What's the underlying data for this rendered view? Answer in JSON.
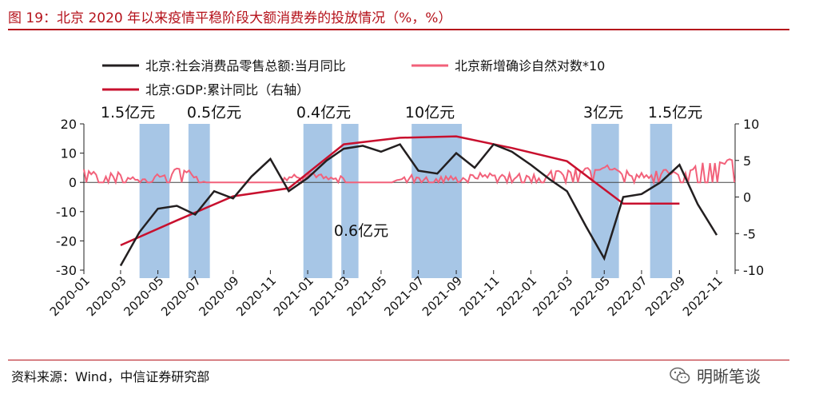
{
  "title": "图 19：北京 2020 年以来疫情平稳阶段大额消费券的投放情况（%，%）",
  "source": "资料来源：Wind，中信证券研究部",
  "watermark": "明晰笔谈",
  "colors": {
    "title": "#b5121b",
    "retail": "#231f20",
    "covid": "#f2617a",
    "gdp": "#c8102e",
    "shade": "#a7c6e6"
  },
  "chart_data": {
    "type": "line",
    "legend": [
      {
        "key": "retail",
        "label": "北京:社会消费品零售总额:当月同比"
      },
      {
        "key": "covid",
        "label": "北京新增确诊自然对数*10"
      },
      {
        "key": "gdp",
        "label": "北京:GDP:累计同比（右轴）"
      }
    ],
    "x_ticks": [
      "2020-01",
      "2020-03",
      "2020-05",
      "2020-07",
      "2020-09",
      "2020-11",
      "2021-01",
      "2021-03",
      "2021-05",
      "2021-07",
      "2021-09",
      "2021-11",
      "2022-01",
      "2022-03",
      "2022-05",
      "2022-07",
      "2022-09",
      "2022-11"
    ],
    "y_left": {
      "min": -30,
      "max": 20,
      "ticks": [
        20,
        10,
        0,
        -10,
        -20,
        -30
      ]
    },
    "y_right": {
      "min": -10,
      "max": 10,
      "ticks": [
        10,
        5,
        0,
        -5,
        -10
      ]
    },
    "retail": {
      "dates": [
        "2020-03",
        "2020-04",
        "2020-05",
        "2020-06",
        "2020-07",
        "2020-08",
        "2020-09",
        "2020-10",
        "2020-11",
        "2020-12",
        "2021-01",
        "2021-02",
        "2021-03",
        "2021-04",
        "2021-05",
        "2021-06",
        "2021-07",
        "2021-08",
        "2021-09",
        "2021-10",
        "2021-11",
        "2021-12",
        "2022-01",
        "2022-02",
        "2022-03",
        "2022-04",
        "2022-05",
        "2022-06",
        "2022-07",
        "2022-08",
        "2022-09",
        "2022-10",
        "2022-11"
      ],
      "values": [
        -28.5,
        -17,
        -9,
        -8,
        -11,
        -3,
        -5.5,
        2,
        8,
        -3,
        1.5,
        7.5,
        11.5,
        12.5,
        10.5,
        13,
        4,
        3,
        10,
        5,
        13,
        10.5,
        6,
        1,
        -3,
        -15,
        -26,
        -5,
        -4,
        0,
        6,
        -7.5,
        -18
      ]
    },
    "gdp": {
      "dates": [
        "2020-03",
        "2020-06",
        "2020-09",
        "2020-12",
        "2021-03",
        "2021-06",
        "2021-09",
        "2021-12",
        "2022-03",
        "2022-06",
        "2022-09"
      ],
      "values": [
        -6.6,
        -3.2,
        0.1,
        1.2,
        7.2,
        8.1,
        8.3,
        6.7,
        4.9,
        -0.9,
        -0.9
      ]
    },
    "covid_note": "北京新增确诊自然对数*10 — daily series, roughly 0–15, flat at 0 for long stretches with spikes",
    "shaded_periods": [
      {
        "start": "2020-04",
        "end": "2020-05-20",
        "label": "1.5亿元"
      },
      {
        "start": "2020-06-20",
        "end": "2020-07-25",
        "label": "0.5亿元"
      },
      {
        "start": "2020-12-25",
        "end": "2021-02-10",
        "label": "0.4亿元"
      },
      {
        "start": "2021-02-25",
        "end": "2021-03-25",
        "label": "0.6亿元"
      },
      {
        "start": "2021-06-20",
        "end": "2021-09-10",
        "label": "10亿元"
      },
      {
        "start": "2022-04-10",
        "end": "2022-05-25",
        "label": "3亿元"
      },
      {
        "start": "2022-07-15",
        "end": "2022-08-20",
        "label": "1.5亿元"
      }
    ],
    "grid": false
  }
}
